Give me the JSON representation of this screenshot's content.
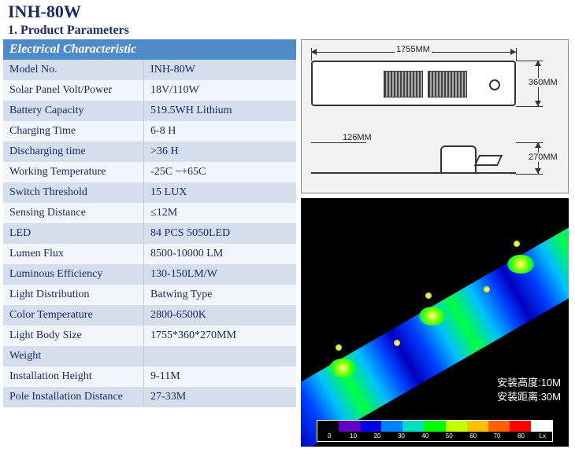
{
  "product": {
    "title": "INH-80W",
    "section_number": "1.",
    "section_label": "Product Parameters"
  },
  "table": {
    "header": "Electrical Characteristic",
    "header_bg": "#4f8bc9",
    "header_fg": "#ffffff",
    "row_alt_bg": "#d4deec",
    "row_norm_bg": "#f2f5f9",
    "text_color": "#1a2a6c",
    "rows": [
      {
        "label": "Model No.",
        "value": "INH-80W"
      },
      {
        "label": "Solar Panel Volt/Power",
        "value": "18V/110W"
      },
      {
        "label": "Battery Capacity",
        "value": "519.5WH Lithium"
      },
      {
        "label": "Charging Time",
        "value": "6-8 H"
      },
      {
        "label": "Discharging time",
        "value": ">36 H"
      },
      {
        "label": "Working Temperature",
        "value": "-25C ~+65C"
      },
      {
        "label": "Switch Threshold",
        "value": "15 LUX"
      },
      {
        "label": "Sensing Distance",
        "value": "≤12M"
      },
      {
        "label": "LED",
        "value": "84 PCS 5050LED"
      },
      {
        "label": "Lumen Flux",
        "value": "8500-10000 LM"
      },
      {
        "label": "Luminous Efficiency",
        "value": "130-150LM/W"
      },
      {
        "label": "Light Distribution",
        "value": "Batwing Type"
      },
      {
        "label": "Color Temperature",
        "value": "2800-6500K"
      },
      {
        "label": "Light Body Size",
        "value": "1755*360*270MM"
      },
      {
        "label": "Weight",
        "value": ""
      },
      {
        "label": "Installation Height",
        "value": "9-11M"
      },
      {
        "label": "Pole Installation Distance",
        "value": "27-33M"
      }
    ]
  },
  "dimensions": {
    "length_label": "1755MM",
    "width_label": "360MM",
    "height_label": "270MM",
    "thickness_label": "126MM"
  },
  "lux_map": {
    "bg_color": "#000000",
    "install_height_label": "安装高度:",
    "install_height_value": "10M",
    "install_distance_label": "安装距离:",
    "install_distance_value": "30M",
    "legend_colors": [
      "#000000",
      "#6000c0",
      "#0000e0",
      "#0080ff",
      "#00e0c0",
      "#00ff00",
      "#c0ff00",
      "#ffc000",
      "#ff6000",
      "#ff0000",
      "#ffffff"
    ],
    "legend_ticks": [
      "0",
      "10",
      "20",
      "30",
      "40",
      "50",
      "60",
      "70",
      "80"
    ],
    "legend_unit": "Lx"
  }
}
